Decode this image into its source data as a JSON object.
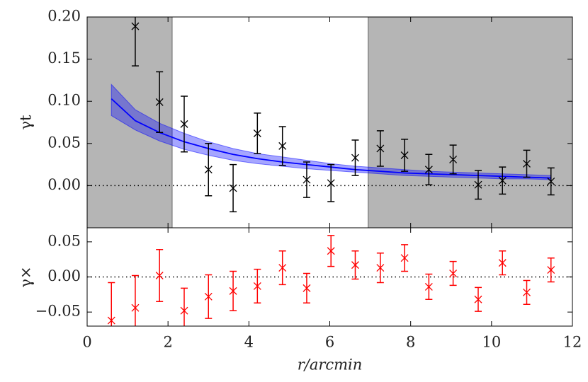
{
  "chart_data": [
    {
      "type": "errorbar",
      "ylabel": "γt",
      "x": [
        1.19,
        1.79,
        2.4,
        3.0,
        3.61,
        4.21,
        4.83,
        5.43,
        6.03,
        6.63,
        7.25,
        7.85,
        8.45,
        9.05,
        9.67,
        10.27,
        10.87,
        11.47
      ],
      "values": [
        0.189,
        0.099,
        0.073,
        0.019,
        -0.003,
        0.062,
        0.047,
        0.007,
        0.003,
        0.033,
        0.044,
        0.036,
        0.019,
        0.031,
        0.001,
        0.006,
        0.026,
        0.005
      ],
      "errors": [
        0.047,
        0.036,
        0.033,
        0.031,
        0.028,
        0.024,
        0.023,
        0.021,
        0.022,
        0.021,
        0.021,
        0.019,
        0.018,
        0.017,
        0.017,
        0.016,
        0.016,
        0.016
      ],
      "color": "#000000",
      "model": {
        "x": [
          0.6,
          1.19,
          1.79,
          2.4,
          3.0,
          3.61,
          4.21,
          4.83,
          5.43,
          6.03,
          6.63,
          7.25,
          7.85,
          8.45,
          9.05,
          9.67,
          10.27,
          10.87,
          11.47
        ],
        "values": [
          0.103,
          0.077,
          0.063,
          0.052,
          0.044,
          0.037,
          0.032,
          0.028,
          0.025,
          0.022,
          0.019,
          0.017,
          0.015,
          0.014,
          0.013,
          0.012,
          0.011,
          0.01,
          0.009
        ],
        "lower": [
          0.083,
          0.066,
          0.053,
          0.043,
          0.036,
          0.03,
          0.026,
          0.023,
          0.02,
          0.018,
          0.016,
          0.014,
          0.012,
          0.011,
          0.01,
          0.009,
          0.008,
          0.008,
          0.007
        ],
        "upper": [
          0.12,
          0.09,
          0.074,
          0.062,
          0.052,
          0.044,
          0.038,
          0.034,
          0.03,
          0.026,
          0.023,
          0.021,
          0.019,
          0.017,
          0.016,
          0.015,
          0.014,
          0.013,
          0.012
        ],
        "color": "#0000ff"
      },
      "shaded": [
        [
          0,
          2.1
        ],
        [
          6.95,
          12
        ]
      ],
      "zero_line": true,
      "xlim": [
        0,
        12
      ],
      "ylim": [
        -0.05,
        0.2
      ],
      "yticks": [
        {
          "value": 0,
          "label": "0.00"
        },
        {
          "value": 0.05,
          "label": "0.05"
        },
        {
          "value": 0.1,
          "label": "0.10"
        },
        {
          "value": 0.15,
          "label": "0.15"
        },
        {
          "value": 0.2,
          "label": "0.20"
        }
      ]
    },
    {
      "type": "errorbar",
      "ylabel": "γ×",
      "xlabel": "r/arcmin",
      "x": [
        0.6,
        1.19,
        1.79,
        2.4,
        3.0,
        3.61,
        4.21,
        4.83,
        5.43,
        6.03,
        6.63,
        7.25,
        7.85,
        8.45,
        9.05,
        9.67,
        10.27,
        10.87,
        11.47
      ],
      "values": [
        -0.062,
        -0.044,
        0.002,
        -0.048,
        -0.028,
        -0.02,
        -0.013,
        0.013,
        -0.016,
        0.037,
        0.017,
        0.013,
        0.027,
        -0.014,
        0.005,
        -0.032,
        0.02,
        -0.022,
        0.01
      ],
      "errors": [
        0.054,
        0.046,
        0.037,
        0.032,
        0.031,
        0.028,
        0.024,
        0.024,
        0.021,
        0.022,
        0.02,
        0.021,
        0.019,
        0.018,
        0.017,
        0.017,
        0.017,
        0.017,
        0.017
      ],
      "color": "#ff0000",
      "zero_line": true,
      "xlim": [
        0,
        12
      ],
      "ylim": [
        -0.07,
        0.07
      ],
      "xticks": [
        0,
        2,
        4,
        6,
        8,
        10,
        12
      ],
      "yticks": [
        {
          "value": -0.05,
          "label": "−0.05"
        },
        {
          "value": 0,
          "label": "0.00"
        },
        {
          "value": 0.05,
          "label": "0.05"
        }
      ]
    }
  ]
}
